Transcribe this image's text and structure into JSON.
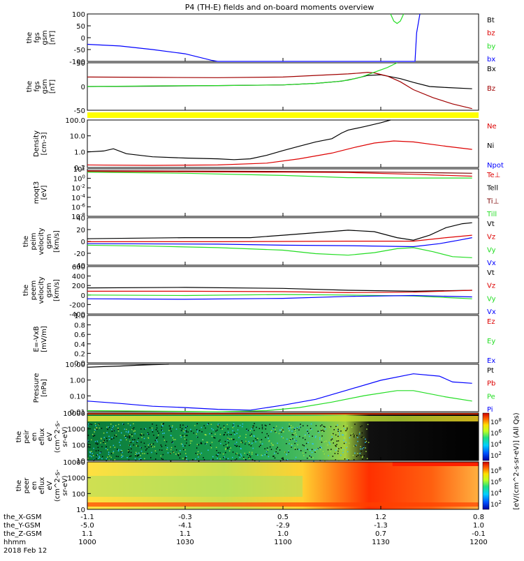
{
  "title": "P4 (TH-E) fields and on-board moments overview",
  "chart_data": {
    "type": "line",
    "title": "P4 (TH-E) fields and on-board moments overview",
    "x_time_labels": [
      "1000",
      "1030",
      "1100",
      "1130",
      "1200"
    ],
    "ephemeris": {
      "row_labels": [
        "the_X-GSM",
        "the_Y-GSM",
        "the_Z-GSM",
        "hhmm"
      ],
      "date": "2018 Feb 12",
      "columns": [
        [
          "-1.1",
          "-5.0",
          "1.1",
          "1000"
        ],
        [
          "-0.3",
          "-4.1",
          "1.1",
          "1030"
        ],
        [
          "0.5",
          "-2.9",
          "1.0",
          "1100"
        ],
        [
          "1.2",
          "-1.3",
          "0.7",
          "1130"
        ],
        [
          "0.8",
          "1.0",
          "-0.1",
          "1200"
        ]
      ]
    },
    "panels": [
      {
        "ylabel": [
          "the",
          "fgs",
          "gsm",
          "[nT]"
        ],
        "yticks": [
          "100",
          "50",
          "0",
          "-50",
          "-100"
        ],
        "ylim": [
          -100,
          100
        ],
        "series": [
          {
            "name": "Bt",
            "color": "#000000",
            "x": [],
            "y": []
          },
          {
            "name": "bz",
            "color": "#dd0000",
            "x": [],
            "y": []
          },
          {
            "name": "by",
            "color": "#22dd22",
            "x": [
              93,
              94,
              95,
              96,
              97
            ],
            "y": [
              100,
              70,
              60,
              70,
              100
            ]
          },
          {
            "name": "bx",
            "color": "#0000ff",
            "x": [
              0,
              10,
              20,
              30,
              38,
              40,
              100.5,
              101,
              102
            ],
            "y": [
              -28,
              -35,
              -50,
              -68,
              -95,
              -100,
              -100,
              20,
              100
            ]
          }
        ]
      },
      {
        "ylabel": [
          "the",
          "fgs",
          "gsm",
          "[nT]"
        ],
        "yticks": [
          "50",
          "0",
          "-50"
        ],
        "ylim": [
          -80,
          70
        ],
        "series": [
          {
            "name": "Bx",
            "color": "#000000",
            "x": [
              0,
              20,
              40,
              60,
              70,
              78,
              82,
              84,
              86,
              90,
              96,
              100,
              105,
              110,
              118
            ],
            "y": [
              -5,
              -4,
              -2,
              0,
              5,
              12,
              20,
              25,
              30,
              32,
              20,
              8,
              -5,
              -8,
              -12
            ]
          },
          {
            "name": "Bz",
            "color": "#a00000",
            "x": [
              0,
              20,
              40,
              60,
              70,
              80,
              84,
              86,
              88,
              92,
              96,
              100,
              106,
              112,
              118
            ],
            "y": [
              25,
              24,
              23,
              25,
              30,
              35,
              38,
              40,
              38,
              28,
              10,
              -15,
              -40,
              -60,
              -75
            ]
          },
          {
            "name": "",
            "color": "#22dd22",
            "x": [
              0,
              20,
              40,
              60,
              70,
              76,
              80,
              84,
              88,
              92,
              95
            ],
            "y": [
              -5,
              -3,
              -2,
              0,
              5,
              10,
              15,
              25,
              40,
              55,
              70
            ]
          }
        ]
      },
      {
        "ylabel": [
          "Density",
          "[cm-3]"
        ],
        "yticks": [
          "100.0",
          "10.0",
          "1.0",
          "0.1"
        ],
        "ylim": [
          0.1,
          200
        ],
        "log": true,
        "series": [
          {
            "name": "Ne",
            "color": "#dd0000",
            "x": [
              0,
              20,
              40,
              55,
              65,
              75,
              82,
              88,
              94,
              100,
              110,
              118
            ],
            "y": [
              0.15,
              0.14,
              0.15,
              0.2,
              0.4,
              1.0,
              2.5,
              5,
              7,
              6,
              3,
              1.8
            ]
          },
          {
            "name": "Ni",
            "color": "#000000",
            "x": [
              0,
              5,
              8,
              12,
              20,
              30,
              40,
              45,
              50,
              55,
              60,
              65,
              70,
              75,
              78,
              80,
              85,
              90,
              93
            ],
            "y": [
              1.2,
              1.4,
              2.0,
              0.9,
              0.55,
              0.45,
              0.4,
              0.35,
              0.4,
              0.7,
              1.5,
              3,
              6,
              10,
              25,
              40,
              70,
              130,
              200
            ]
          },
          {
            "name": "Npot",
            "color": "#0000ff",
            "x": [],
            "y": []
          }
        ]
      },
      {
        "ylabel": [
          "moqt3",
          "[eV]"
        ],
        "yticks": [
          "10^2",
          "10^0",
          "10^-2",
          "10^-4",
          "10^-6",
          "10^-8"
        ],
        "ylim": [
          -10,
          3
        ],
        "log": true,
        "series": [
          {
            "name": "Te⊥",
            "color": "#dd0000",
            "x": [
              0,
              30,
              60,
              80,
              100,
              118
            ],
            "y": [
              2.3,
              2.2,
              2.1,
              2.0,
              1.5,
              1.0
            ]
          },
          {
            "name": "Tell",
            "color": "#000000",
            "x": [],
            "y": []
          },
          {
            "name": "Ti⊥",
            "color": "#7a0000",
            "x": [
              0,
              30,
              60,
              80,
              100,
              118
            ],
            "y": [
              2.5,
              2.4,
              2.3,
              2.2,
              2.0,
              1.8
            ]
          },
          {
            "name": "Till",
            "color": "#22dd22",
            "x": [
              0,
              30,
              60,
              80,
              100,
              118
            ],
            "y": [
              2.1,
              1.8,
              1.2,
              0.6,
              0.5,
              0.5
            ]
          }
        ]
      },
      {
        "ylabel": [
          "the",
          "peim",
          "velocity",
          "gsm",
          "[km/s]"
        ],
        "yticks": [
          "40",
          "20",
          "0",
          "-20",
          "-40"
        ],
        "ylim": [
          -45,
          50
        ],
        "series": [
          {
            "name": "Vt",
            "color": "#000000",
            "x": [
              0,
              30,
              50,
              60,
              70,
              80,
              88,
              95,
              100,
              105,
              110,
              115,
              118
            ],
            "y": [
              8,
              10,
              10,
              15,
              20,
              25,
              22,
              10,
              5,
              15,
              30,
              38,
              40
            ]
          },
          {
            "name": "Vz",
            "color": "#dd0000",
            "x": [
              0,
              40,
              80,
              100,
              110,
              118
            ],
            "y": [
              2,
              2,
              3,
              3,
              10,
              15
            ]
          },
          {
            "name": "Vy",
            "color": "#22dd22",
            "x": [
              0,
              20,
              40,
              60,
              70,
              80,
              88,
              95,
              100,
              106,
              112,
              118
            ],
            "y": [
              -5,
              -7,
              -10,
              -15,
              -22,
              -25,
              -20,
              -12,
              -10,
              -18,
              -28,
              -30
            ]
          },
          {
            "name": "Vx",
            "color": "#0000ff",
            "x": [
              0,
              40,
              60,
              80,
              100,
              108,
              114,
              118
            ],
            "y": [
              -2,
              -3,
              -5,
              -6,
              -8,
              -2,
              5,
              10
            ]
          }
        ]
      },
      {
        "ylabel": [
          "the",
          "peem",
          "velocity",
          "gsm",
          "[km/s]"
        ],
        "yticks": [
          "600",
          "400",
          "200",
          "0",
          "-200",
          "-400"
        ],
        "ylim": [
          -400,
          600
        ],
        "series": [
          {
            "name": "Vt",
            "color": "#000000",
            "x": [
              0,
              30,
              60,
              80,
              100,
              118
            ],
            "y": [
              150,
              160,
              140,
              100,
              80,
              100
            ]
          },
          {
            "name": "Vz",
            "color": "#dd0000",
            "x": [
              0,
              30,
              60,
              80,
              100,
              118
            ],
            "y": [
              80,
              80,
              70,
              50,
              60,
              100
            ]
          },
          {
            "name": "Vy",
            "color": "#22dd22",
            "x": [
              0,
              30,
              60,
              80,
              100,
              118
            ],
            "y": [
              0,
              -10,
              10,
              0,
              -20,
              -80
            ]
          },
          {
            "name": "Vx",
            "color": "#0000ff",
            "x": [
              0,
              30,
              60,
              80,
              100,
              118
            ],
            "y": [
              -80,
              -90,
              -70,
              -30,
              -10,
              -40
            ]
          }
        ]
      },
      {
        "ylabel": [
          "E=-VxB",
          "[mV/m]"
        ],
        "yticks": [
          "1.0",
          "0.8",
          "0.6",
          "0.4",
          "0.2",
          "0.0"
        ],
        "ylim": [
          0,
          1
        ],
        "series": [
          {
            "name": "Ez",
            "color": "#dd0000",
            "x": [],
            "y": []
          },
          {
            "name": "Ey",
            "color": "#22dd22",
            "x": [],
            "y": []
          },
          {
            "name": "Ex",
            "color": "#0000ff",
            "x": [],
            "y": []
          }
        ]
      },
      {
        "ylabel": [
          "Pressure",
          "[nPa]"
        ],
        "yticks": [
          "10.00",
          "1.00",
          "0.10",
          "0.01"
        ],
        "ylim": [
          0.01,
          30
        ],
        "log": true,
        "series": [
          {
            "name": "Pt",
            "color": "#000000",
            "x": [
              0,
              5,
              10,
              15,
              20,
              25
            ],
            "y": [
              18,
              20,
              22,
              25,
              28,
              30
            ]
          },
          {
            "name": "Pb",
            "color": "#dd0000",
            "x": [],
            "y": []
          },
          {
            "name": "Pe",
            "color": "#22dd22",
            "x": [
              0,
              20,
              40,
              55,
              65,
              75,
              85,
              95,
              100,
              110,
              118
            ],
            "y": [
              0.012,
              0.011,
              0.01,
              0.012,
              0.02,
              0.05,
              0.15,
              0.35,
              0.35,
              0.12,
              0.06
            ]
          },
          {
            "name": "Pi",
            "color": "#0000ff",
            "x": [
              0,
              10,
              20,
              30,
              40,
              50,
              60,
              70,
              80,
              90,
              100,
              108,
              112,
              118
            ],
            "y": [
              0.06,
              0.04,
              0.025,
              0.02,
              0.015,
              0.013,
              0.03,
              0.08,
              0.4,
              2,
              6,
              4,
              1.5,
              1.2
            ]
          }
        ]
      },
      {
        "type": "heatmap",
        "ylabel": [
          "the",
          "peir",
          "en",
          "eflux",
          "eV",
          "(cm^2-s-",
          "sr-eV)"
        ],
        "yticks": [
          "10000",
          "1000",
          "100",
          "10"
        ],
        "colorbar_ticks": [
          "10^8",
          "10^6",
          "10^4",
          "10^2"
        ]
      },
      {
        "type": "heatmap",
        "ylabel": [
          "the",
          "peer",
          "en",
          "eflux",
          "eV",
          "(cm^2-s-",
          "sr-eV)"
        ],
        "yticks": [
          "10000",
          "1000",
          "100",
          "10"
        ],
        "colorbar_ticks": [
          "10^8",
          "10^6",
          "10^4",
          "10^2"
        ],
        "colorbar_label": "[eV/(cm^2-s-sr-eV)] (All Qs)"
      }
    ]
  }
}
